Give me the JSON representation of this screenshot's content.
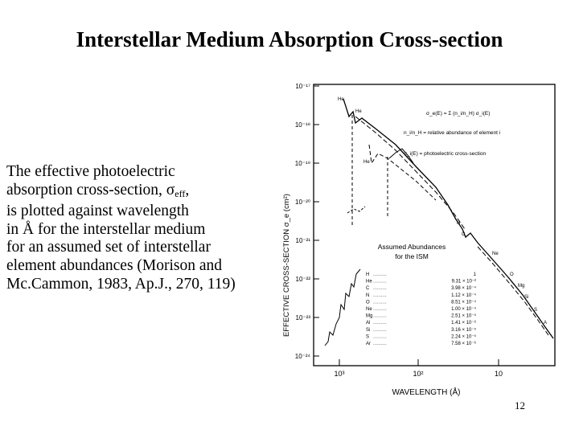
{
  "slide": {
    "title": "Interstellar Medium Absorption Cross-section",
    "caption_lines": [
      "The effective photoelectric",
      "absorption cross-section, ",
      "is plotted against wavelength",
      "in Å for the interstellar medium",
      "for an assumed set of interstellar",
      "element abundances (Morison and",
      "Mc.Cammon, 1983, Ap.J., 270, 119)"
    ],
    "sigma_symbol": "σ",
    "sigma_subscript": "eff",
    "page_number": "12"
  },
  "figure": {
    "ylabel": "EFFECTIVE CROSS-SECTION σ_e (cm²)",
    "xlabel": "WAVELENGTH (Å)",
    "y_tick_labels": [
      "10⁻¹⁷",
      "10⁻¹⁸",
      "10⁻¹⁹",
      "10⁻²⁰",
      "10⁻²¹",
      "10⁻²²",
      "10⁻²³",
      "10⁻²⁴"
    ],
    "x_tick_labels": [
      "10³",
      "10²",
      "10"
    ],
    "formula_lines": [
      "σ_e(E) = Σ (n_i/n_H) σ_i(E)",
      "n_i/n_H = relative abundance of element i",
      "σ_i(E) = photoelectric cross-section"
    ],
    "abundance_table": {
      "title": "Assumed Abundances",
      "subtitle": "for the ISM",
      "rows": [
        {
          "element": "H",
          "value": "1"
        },
        {
          "element": "He",
          "value": "9.31 × 10⁻²"
        },
        {
          "element": "C",
          "value": "3.98 × 10⁻⁴"
        },
        {
          "element": "N",
          "value": "1.12 × 10⁻⁴"
        },
        {
          "element": "O",
          "value": "8.51 × 10⁻⁴"
        },
        {
          "element": "Ne",
          "value": "1.00 × 10⁻⁴"
        },
        {
          "element": "Mg",
          "value": "2.51 × 10⁻⁵"
        },
        {
          "element": "Al",
          "value": "1.41 × 10⁻⁶"
        },
        {
          "element": "Si",
          "value": "3.16 × 10⁻⁵"
        },
        {
          "element": "S",
          "value": "2.24 × 10⁻⁵"
        },
        {
          "element": "Ar",
          "value": "7.58 × 10⁻⁶"
        }
      ]
    },
    "edge_labels": [
      "He",
      "He",
      "He",
      "H",
      "C",
      "Ne",
      "O",
      "Mg",
      "Si",
      "S",
      "A"
    ]
  }
}
